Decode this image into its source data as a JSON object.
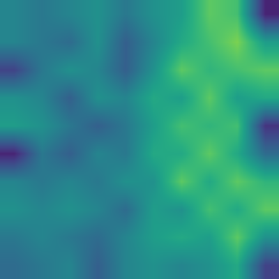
{
  "chart_data": {
    "type": "heatmap",
    "color": "Viridis",
    "tick_labels": false,
    "grid": false,
    "xlim": [
      -0.5,
      9.5
    ],
    "ylim": [
      9.5,
      -0.5
    ],
    "zlim": [
      0,
      1
    ],
    "cells": [
      [
        0.45,
        0.4,
        0.45,
        0.5,
        0.4,
        0.5,
        0.55,
        0.75,
        0.7,
        0.1
      ],
      [
        0.45,
        0.4,
        0.35,
        0.5,
        0.3,
        0.45,
        0.6,
        0.7,
        0.8,
        0.55
      ],
      [
        0.2,
        0.4,
        0.5,
        0.45,
        0.3,
        0.5,
        0.75,
        0.65,
        0.7,
        0.75
      ],
      [
        0.5,
        0.45,
        0.3,
        0.5,
        0.45,
        0.6,
        0.55,
        0.75,
        0.55,
        0.6
      ],
      [
        0.55,
        0.5,
        0.4,
        0.3,
        0.4,
        0.55,
        0.7,
        0.65,
        0.7,
        0.15
      ],
      [
        0.1,
        0.4,
        0.3,
        0.45,
        0.4,
        0.6,
        0.6,
        0.75,
        0.6,
        0.35
      ],
      [
        0.45,
        0.4,
        0.45,
        0.4,
        0.5,
        0.5,
        0.75,
        0.6,
        0.75,
        0.65
      ],
      [
        0.5,
        0.45,
        0.5,
        0.45,
        0.35,
        0.55,
        0.5,
        0.7,
        0.6,
        0.75
      ],
      [
        0.4,
        0.45,
        0.4,
        0.35,
        0.45,
        0.55,
        0.6,
        0.55,
        0.75,
        0.5
      ],
      [
        0.35,
        0.4,
        0.45,
        0.3,
        0.45,
        0.5,
        0.45,
        0.5,
        0.6,
        0.2
      ]
    ]
  }
}
